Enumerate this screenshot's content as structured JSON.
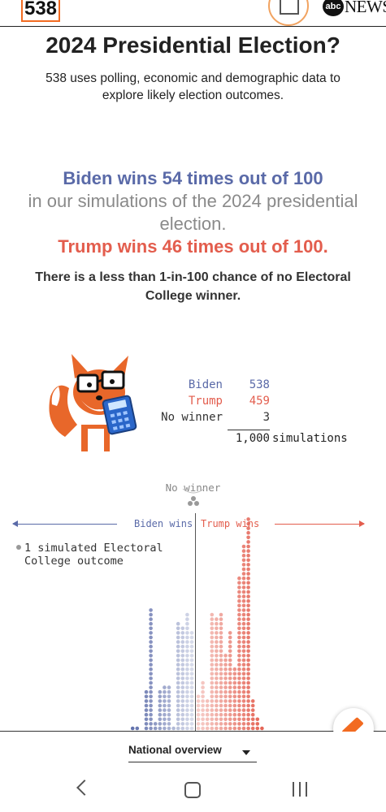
{
  "header": {
    "logo_text": "538",
    "news_logo_abc": "abc",
    "news_logo_text": "NEWS",
    "doc_icon": "document-icon"
  },
  "hero": {
    "title": "2024 Presidential Election?",
    "subtitle": "538 uses polling, economic and demographic data to explore likely election outcomes."
  },
  "summary": {
    "biden_line": "Biden wins 54 times out of 100",
    "middle_line": "in our simulations of the 2024 presidential election.",
    "trump_line": "Trump wins 46 times out of 100.",
    "no_winner_line": "There is a less than 1-in-100 chance of no Electoral College winner."
  },
  "tally": {
    "rows": [
      {
        "label": "Biden",
        "value": "538",
        "color": "#5a6aa8"
      },
      {
        "label": "Trump",
        "value": "459",
        "color": "#e35d4d"
      },
      {
        "label": "No winner",
        "value": "3",
        "color": "#333333"
      }
    ],
    "total_value": "1,000",
    "total_label": "simulations"
  },
  "distribution": {
    "no_winner_label": "No winner",
    "biden_label": "Biden wins",
    "trump_label": "Trump wins",
    "legend_text": "1 simulated Electoral College outcome",
    "colors": {
      "biden": "#5a6aa8",
      "trump": "#e35d4d",
      "neutral": "#999999"
    }
  },
  "chart_data": {
    "type": "dot-histogram",
    "unit": "1 simulated Electoral College outcome",
    "biden_side_columns_left_to_right": [
      1,
      1,
      0,
      9,
      27,
      2,
      9,
      10,
      10,
      1,
      24,
      23,
      26,
      22
    ],
    "trump_side_columns_left_to_right": [
      8,
      11,
      7,
      26,
      25,
      26,
      17,
      22,
      14,
      34,
      41,
      47,
      7,
      3,
      1
    ]
  },
  "footer": {
    "dropdown_label": "National overview",
    "fab_icon": "compass-icon"
  },
  "system_nav": {
    "back": "back-icon",
    "home": "home-icon",
    "recents": "recents-icon"
  }
}
